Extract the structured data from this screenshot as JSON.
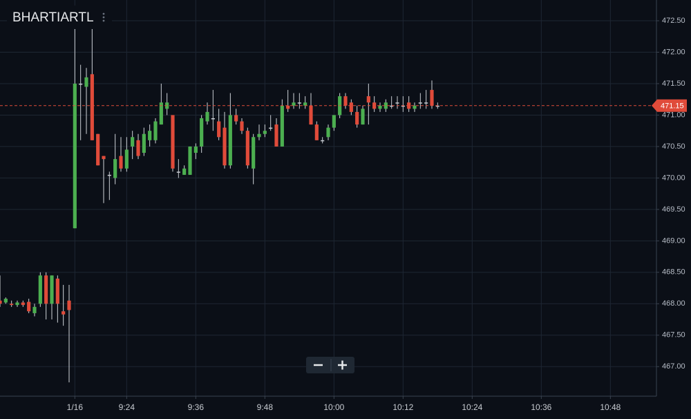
{
  "chart_data": {
    "type": "candlestick",
    "title": "BHARTIARTL",
    "x": [
      -13,
      -12,
      -11,
      -10,
      -9,
      -8,
      -7,
      -6,
      -5,
      -4,
      -3,
      -2,
      -1,
      0,
      1,
      2,
      3,
      4,
      5,
      6,
      7,
      8,
      9,
      10,
      11,
      12,
      13,
      14,
      15,
      16,
      17,
      18,
      19,
      20,
      21,
      22,
      23,
      24,
      25,
      26,
      27,
      28,
      29,
      30,
      31,
      32,
      33,
      34,
      35,
      36,
      37,
      38,
      39,
      40,
      41,
      42,
      43,
      44,
      45,
      46,
      47,
      48,
      49,
      50,
      51,
      52,
      53,
      54,
      55,
      56,
      57,
      58,
      59,
      60,
      61,
      62,
      63
    ],
    "open": [
      468.05,
      468.02,
      468.0,
      467.98,
      468.02,
      468.03,
      467.85,
      468.0,
      468.45,
      468.0,
      468.4,
      467.88,
      468.05,
      469.2,
      471.5,
      471.45,
      471.65,
      470.7,
      470.35,
      470.05,
      470.0,
      470.35,
      470.15,
      470.5,
      470.6,
      470.4,
      470.6,
      470.6,
      470.85,
      471.1,
      471.0,
      470.1,
      470.05,
      470.05,
      470.4,
      470.5,
      470.9,
      470.95,
      470.9,
      470.8,
      470.2,
      471.0,
      470.9,
      470.75,
      470.15,
      470.65,
      470.7,
      470.8,
      470.85,
      470.5,
      471.15,
      471.15,
      471.2,
      471.15,
      471.15,
      470.85,
      470.6,
      470.65,
      470.8,
      471.0,
      471.3,
      471.2,
      471.05,
      470.85,
      471.3,
      471.2,
      471.1,
      471.1,
      471.15,
      471.2,
      471.15,
      471.2,
      471.1,
      471.2,
      471.2,
      471.4,
      471.15
    ],
    "high": [
      468.45,
      468.1,
      468.05,
      468.05,
      468.05,
      468.08,
      468.0,
      468.5,
      468.5,
      468.45,
      468.45,
      468.3,
      468.3,
      472.4,
      471.8,
      471.75,
      472.4,
      470.7,
      470.35,
      470.1,
      470.7,
      470.65,
      470.65,
      470.75,
      470.7,
      470.8,
      470.85,
      470.95,
      471.5,
      471.35,
      471.0,
      470.3,
      470.2,
      470.5,
      470.55,
      471.0,
      471.2,
      471.4,
      471.1,
      471.05,
      471.35,
      471.1,
      470.95,
      470.8,
      470.7,
      470.85,
      470.85,
      471.0,
      470.95,
      471.25,
      471.4,
      471.35,
      471.35,
      471.3,
      471.35,
      470.9,
      470.65,
      470.85,
      471.0,
      471.35,
      471.35,
      471.25,
      471.15,
      471.15,
      471.5,
      471.3,
      471.2,
      471.25,
      471.3,
      471.3,
      471.3,
      471.3,
      471.2,
      471.35,
      471.4,
      471.55,
      471.2
    ],
    "low": [
      467.95,
      468.0,
      467.95,
      467.95,
      467.95,
      467.85,
      467.8,
      467.95,
      467.75,
      467.75,
      467.7,
      467.65,
      466.75,
      469.2,
      470.6,
      470.7,
      470.6,
      470.2,
      469.6,
      469.65,
      469.9,
      470.1,
      470.1,
      470.3,
      470.3,
      470.35,
      470.5,
      470.55,
      470.85,
      471.0,
      470.1,
      470.0,
      470.05,
      470.05,
      470.3,
      470.4,
      470.85,
      470.75,
      470.6,
      470.15,
      470.15,
      470.85,
      470.7,
      470.15,
      469.9,
      470.6,
      470.65,
      470.75,
      470.5,
      470.5,
      471.05,
      471.1,
      471.1,
      471.1,
      470.85,
      470.6,
      470.55,
      470.6,
      470.75,
      470.95,
      471.1,
      471.0,
      470.8,
      470.85,
      470.85,
      471.05,
      471.05,
      471.05,
      471.1,
      471.1,
      471.05,
      471.05,
      471.05,
      471.1,
      471.1,
      471.1,
      471.1
    ],
    "close": [
      468.0,
      468.08,
      467.98,
      468.02,
      467.98,
      467.88,
      467.95,
      468.45,
      468.0,
      468.45,
      468.0,
      467.83,
      467.9,
      471.5,
      471.5,
      471.6,
      470.6,
      470.2,
      470.3,
      470.05,
      470.3,
      470.15,
      470.45,
      470.65,
      470.35,
      470.7,
      470.75,
      470.9,
      471.2,
      471.2,
      470.15,
      470.1,
      470.15,
      470.5,
      470.5,
      470.95,
      471.05,
      470.95,
      470.65,
      470.2,
      471.0,
      470.9,
      470.75,
      470.2,
      470.65,
      470.7,
      470.75,
      470.8,
      470.5,
      471.15,
      471.1,
      471.2,
      471.2,
      471.2,
      470.85,
      470.6,
      470.6,
      470.8,
      471.0,
      471.3,
      471.15,
      471.05,
      470.85,
      471.1,
      471.2,
      471.1,
      471.15,
      471.2,
      471.15,
      471.2,
      471.15,
      471.1,
      471.15,
      471.2,
      471.2,
      471.15,
      471.15
    ],
    "up_color": "#4caf50",
    "down_color": "#e04b3a",
    "doji_color": "#c8ccd2",
    "last_price": 471.15,
    "last_price_color": "#e04b3a",
    "xlim": [
      -13,
      101
    ],
    "ylim": [
      466.53,
      472.83
    ],
    "xticks": [
      {
        "value": 0,
        "label": "1/16"
      },
      {
        "value": 9,
        "label": "9:24"
      },
      {
        "value": 21,
        "label": "9:36"
      },
      {
        "value": 33,
        "label": "9:48"
      },
      {
        "value": 45,
        "label": "10:00"
      },
      {
        "value": 57,
        "label": "10:12"
      },
      {
        "value": 69,
        "label": "10:24"
      },
      {
        "value": 81,
        "label": "10:36"
      },
      {
        "value": 93,
        "label": "10:48"
      }
    ],
    "yticks": [
      {
        "value": 467,
        "label": "467.00"
      },
      {
        "value": 467.5,
        "label": "467.50"
      },
      {
        "value": 468,
        "label": "468.00"
      },
      {
        "value": 468.5,
        "label": "468.50"
      },
      {
        "value": 469,
        "label": "469.00"
      },
      {
        "value": 469.5,
        "label": "469.50"
      },
      {
        "value": 470,
        "label": "470.00"
      },
      {
        "value": 470.5,
        "label": "470.50"
      },
      {
        "value": 471,
        "label": "471.00"
      },
      {
        "value": 471.5,
        "label": "471.50"
      },
      {
        "value": 472,
        "label": "472.00"
      },
      {
        "value": 472.5,
        "label": "472.50"
      }
    ],
    "grid": true
  }
}
